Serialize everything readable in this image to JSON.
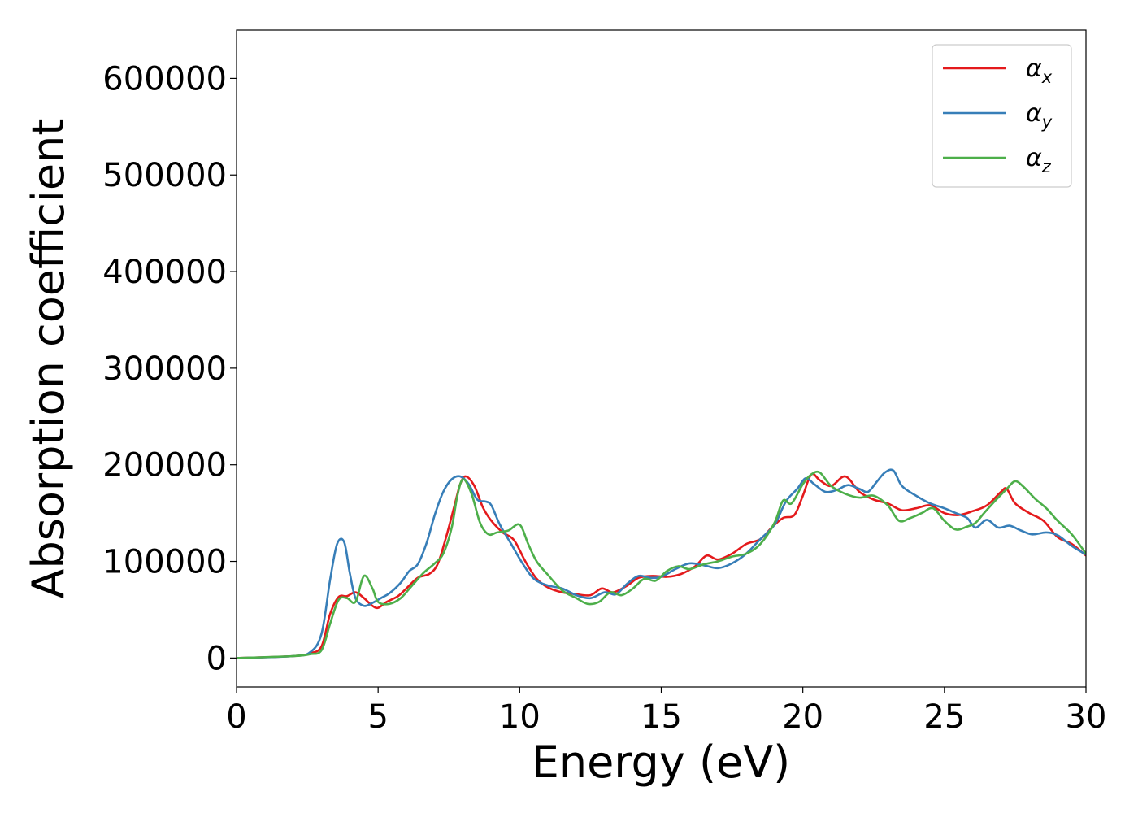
{
  "chart_data": {
    "type": "line",
    "title": "",
    "xlabel": "Energy (eV)",
    "ylabel": "Absorption coefficient",
    "xlim": [
      0,
      30
    ],
    "ylim": [
      -30000,
      650000
    ],
    "xticks": [
      0,
      5,
      10,
      15,
      20,
      25,
      30
    ],
    "xtick_labels": [
      "0",
      "5",
      "10",
      "15",
      "20",
      "25",
      "30"
    ],
    "yticks": [
      0,
      100000,
      200000,
      300000,
      400000,
      500000,
      600000
    ],
    "ytick_labels": [
      "0",
      "100000",
      "200000",
      "300000",
      "400000",
      "500000",
      "600000"
    ],
    "grid": false,
    "legend_position": "top-right",
    "series": [
      {
        "name": "α",
        "subscript": "x",
        "color": "#e41a1c",
        "x": [
          0,
          2,
          2.6,
          3.0,
          3.3,
          3.6,
          3.9,
          4.2,
          4.5,
          4.8,
          5.0,
          5.3,
          5.7,
          6.0,
          6.4,
          6.8,
          7.1,
          7.4,
          7.7,
          7.9,
          8.1,
          8.4,
          8.7,
          9.0,
          9.4,
          9.8,
          10.2,
          10.6,
          11.0,
          11.5,
          12.0,
          12.5,
          12.9,
          13.3,
          13.8,
          14.2,
          14.7,
          15.2,
          15.7,
          16.2,
          16.6,
          17.0,
          17.5,
          18.0,
          18.5,
          18.9,
          19.3,
          19.7,
          20.0,
          20.3,
          20.6,
          21.0,
          21.5,
          22.0,
          22.5,
          23.0,
          23.5,
          24.0,
          24.5,
          25.0,
          25.5,
          26.0,
          26.5,
          27.0,
          27.2,
          27.5,
          28.0,
          28.5,
          29.0,
          29.5,
          30.0
        ],
        "y": [
          0,
          2000,
          5000,
          12000,
          45000,
          63000,
          64000,
          68000,
          62000,
          54000,
          52000,
          58000,
          64000,
          72000,
          83000,
          87000,
          97000,
          125000,
          158000,
          180000,
          188000,
          178000,
          156000,
          142000,
          130000,
          122000,
          100000,
          82000,
          73000,
          68000,
          66000,
          65000,
          72000,
          68000,
          75000,
          83000,
          85000,
          84000,
          87000,
          95000,
          106000,
          102000,
          108000,
          118000,
          123000,
          135000,
          145000,
          148000,
          168000,
          190000,
          184000,
          178000,
          188000,
          172000,
          164000,
          160000,
          153000,
          155000,
          158000,
          150000,
          148000,
          152000,
          158000,
          172000,
          175000,
          160000,
          150000,
          142000,
          125000,
          118000,
          106000
        ]
      },
      {
        "name": "α",
        "subscript": "y",
        "color": "#377eb8",
        "x": [
          0,
          2,
          2.6,
          3.0,
          3.3,
          3.55,
          3.8,
          4.0,
          4.2,
          4.5,
          4.8,
          5.1,
          5.4,
          5.8,
          6.1,
          6.4,
          6.7,
          7.0,
          7.3,
          7.6,
          7.9,
          8.2,
          8.5,
          8.8,
          9.0,
          9.3,
          9.7,
          10.1,
          10.5,
          11.0,
          11.5,
          12.0,
          12.5,
          13.0,
          13.4,
          13.8,
          14.2,
          14.6,
          15.0,
          15.5,
          16.0,
          16.5,
          17.0,
          17.5,
          18.0,
          18.5,
          19.0,
          19.4,
          19.8,
          20.1,
          20.4,
          20.8,
          21.2,
          21.6,
          22.0,
          22.3,
          22.6,
          22.9,
          23.2,
          23.5,
          24.0,
          24.5,
          25.0,
          25.4,
          25.8,
          26.1,
          26.5,
          26.9,
          27.3,
          27.7,
          28.1,
          28.6,
          29.0,
          29.5,
          30.0
        ],
        "y": [
          0,
          2000,
          6000,
          25000,
          80000,
          118000,
          120000,
          88000,
          62000,
          54000,
          57000,
          62000,
          67000,
          78000,
          90000,
          97000,
          118000,
          148000,
          172000,
          185000,
          188000,
          180000,
          164000,
          162000,
          158000,
          138000,
          118000,
          98000,
          82000,
          75000,
          72000,
          65000,
          62000,
          68000,
          66000,
          77000,
          85000,
          83000,
          84000,
          92000,
          98000,
          96000,
          93000,
          98000,
          108000,
          123000,
          138000,
          162000,
          175000,
          186000,
          180000,
          172000,
          174000,
          179000,
          175000,
          172000,
          182000,
          192000,
          194000,
          178000,
          168000,
          160000,
          155000,
          150000,
          145000,
          135000,
          143000,
          135000,
          137000,
          132000,
          128000,
          130000,
          127000,
          116000,
          107000
        ]
      },
      {
        "name": "α",
        "subscript": "z",
        "color": "#4daf4a",
        "x": [
          0,
          2,
          2.6,
          3.0,
          3.3,
          3.6,
          3.9,
          4.2,
          4.5,
          4.8,
          5.0,
          5.4,
          5.8,
          6.2,
          6.6,
          7.0,
          7.3,
          7.6,
          7.8,
          8.0,
          8.3,
          8.6,
          8.9,
          9.2,
          9.6,
          10.0,
          10.3,
          10.6,
          11.0,
          11.5,
          12.0,
          12.4,
          12.8,
          13.2,
          13.6,
          14.0,
          14.4,
          14.8,
          15.2,
          15.6,
          16.0,
          16.5,
          17.0,
          17.5,
          18.0,
          18.5,
          19.0,
          19.3,
          19.6,
          20.0,
          20.3,
          20.6,
          21.0,
          21.5,
          22.0,
          22.5,
          23.0,
          23.4,
          23.8,
          24.2,
          24.6,
          25.0,
          25.4,
          25.8,
          26.1,
          26.4,
          26.8,
          27.2,
          27.5,
          27.8,
          28.2,
          28.6,
          29.0,
          29.5,
          30.0
        ],
        "y": [
          0,
          2000,
          4000,
          8000,
          35000,
          60000,
          62000,
          58000,
          85000,
          72000,
          58000,
          56000,
          62000,
          75000,
          88000,
          98000,
          108000,
          135000,
          168000,
          185000,
          170000,
          140000,
          128000,
          130000,
          132000,
          138000,
          118000,
          100000,
          86000,
          70000,
          62000,
          56000,
          58000,
          68000,
          65000,
          72000,
          82000,
          80000,
          90000,
          95000,
          92000,
          97000,
          100000,
          105000,
          108000,
          118000,
          140000,
          163000,
          160000,
          180000,
          190000,
          192000,
          178000,
          170000,
          166000,
          168000,
          158000,
          142000,
          145000,
          150000,
          155000,
          142000,
          133000,
          136000,
          140000,
          150000,
          163000,
          175000,
          183000,
          177000,
          165000,
          155000,
          142000,
          128000,
          108000
        ]
      }
    ]
  }
}
